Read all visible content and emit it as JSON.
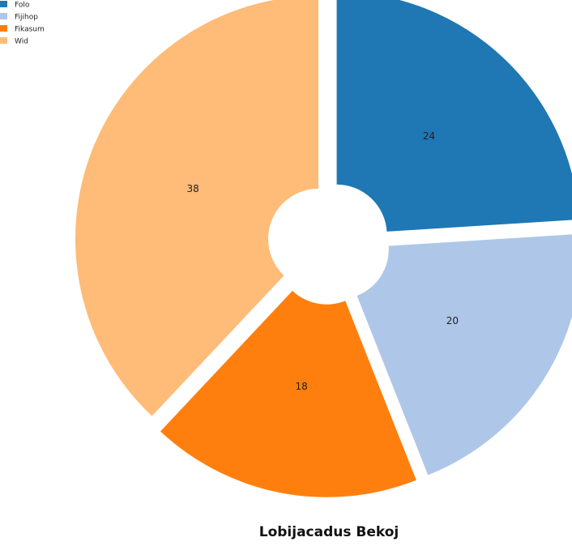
{
  "chart_data": {
    "type": "pie",
    "title": "Lobijacadus Bekoj",
    "labels": [
      "Folo",
      "Fijihop",
      "Fikasum",
      "Wid"
    ],
    "values": [
      24,
      20,
      18,
      38
    ],
    "colors": [
      "#1f77b4",
      "#aec7e8",
      "#ff7f0e",
      "#ffbb78"
    ],
    "legend_position": "top-left",
    "donut_hole": true,
    "exploded": true
  }
}
